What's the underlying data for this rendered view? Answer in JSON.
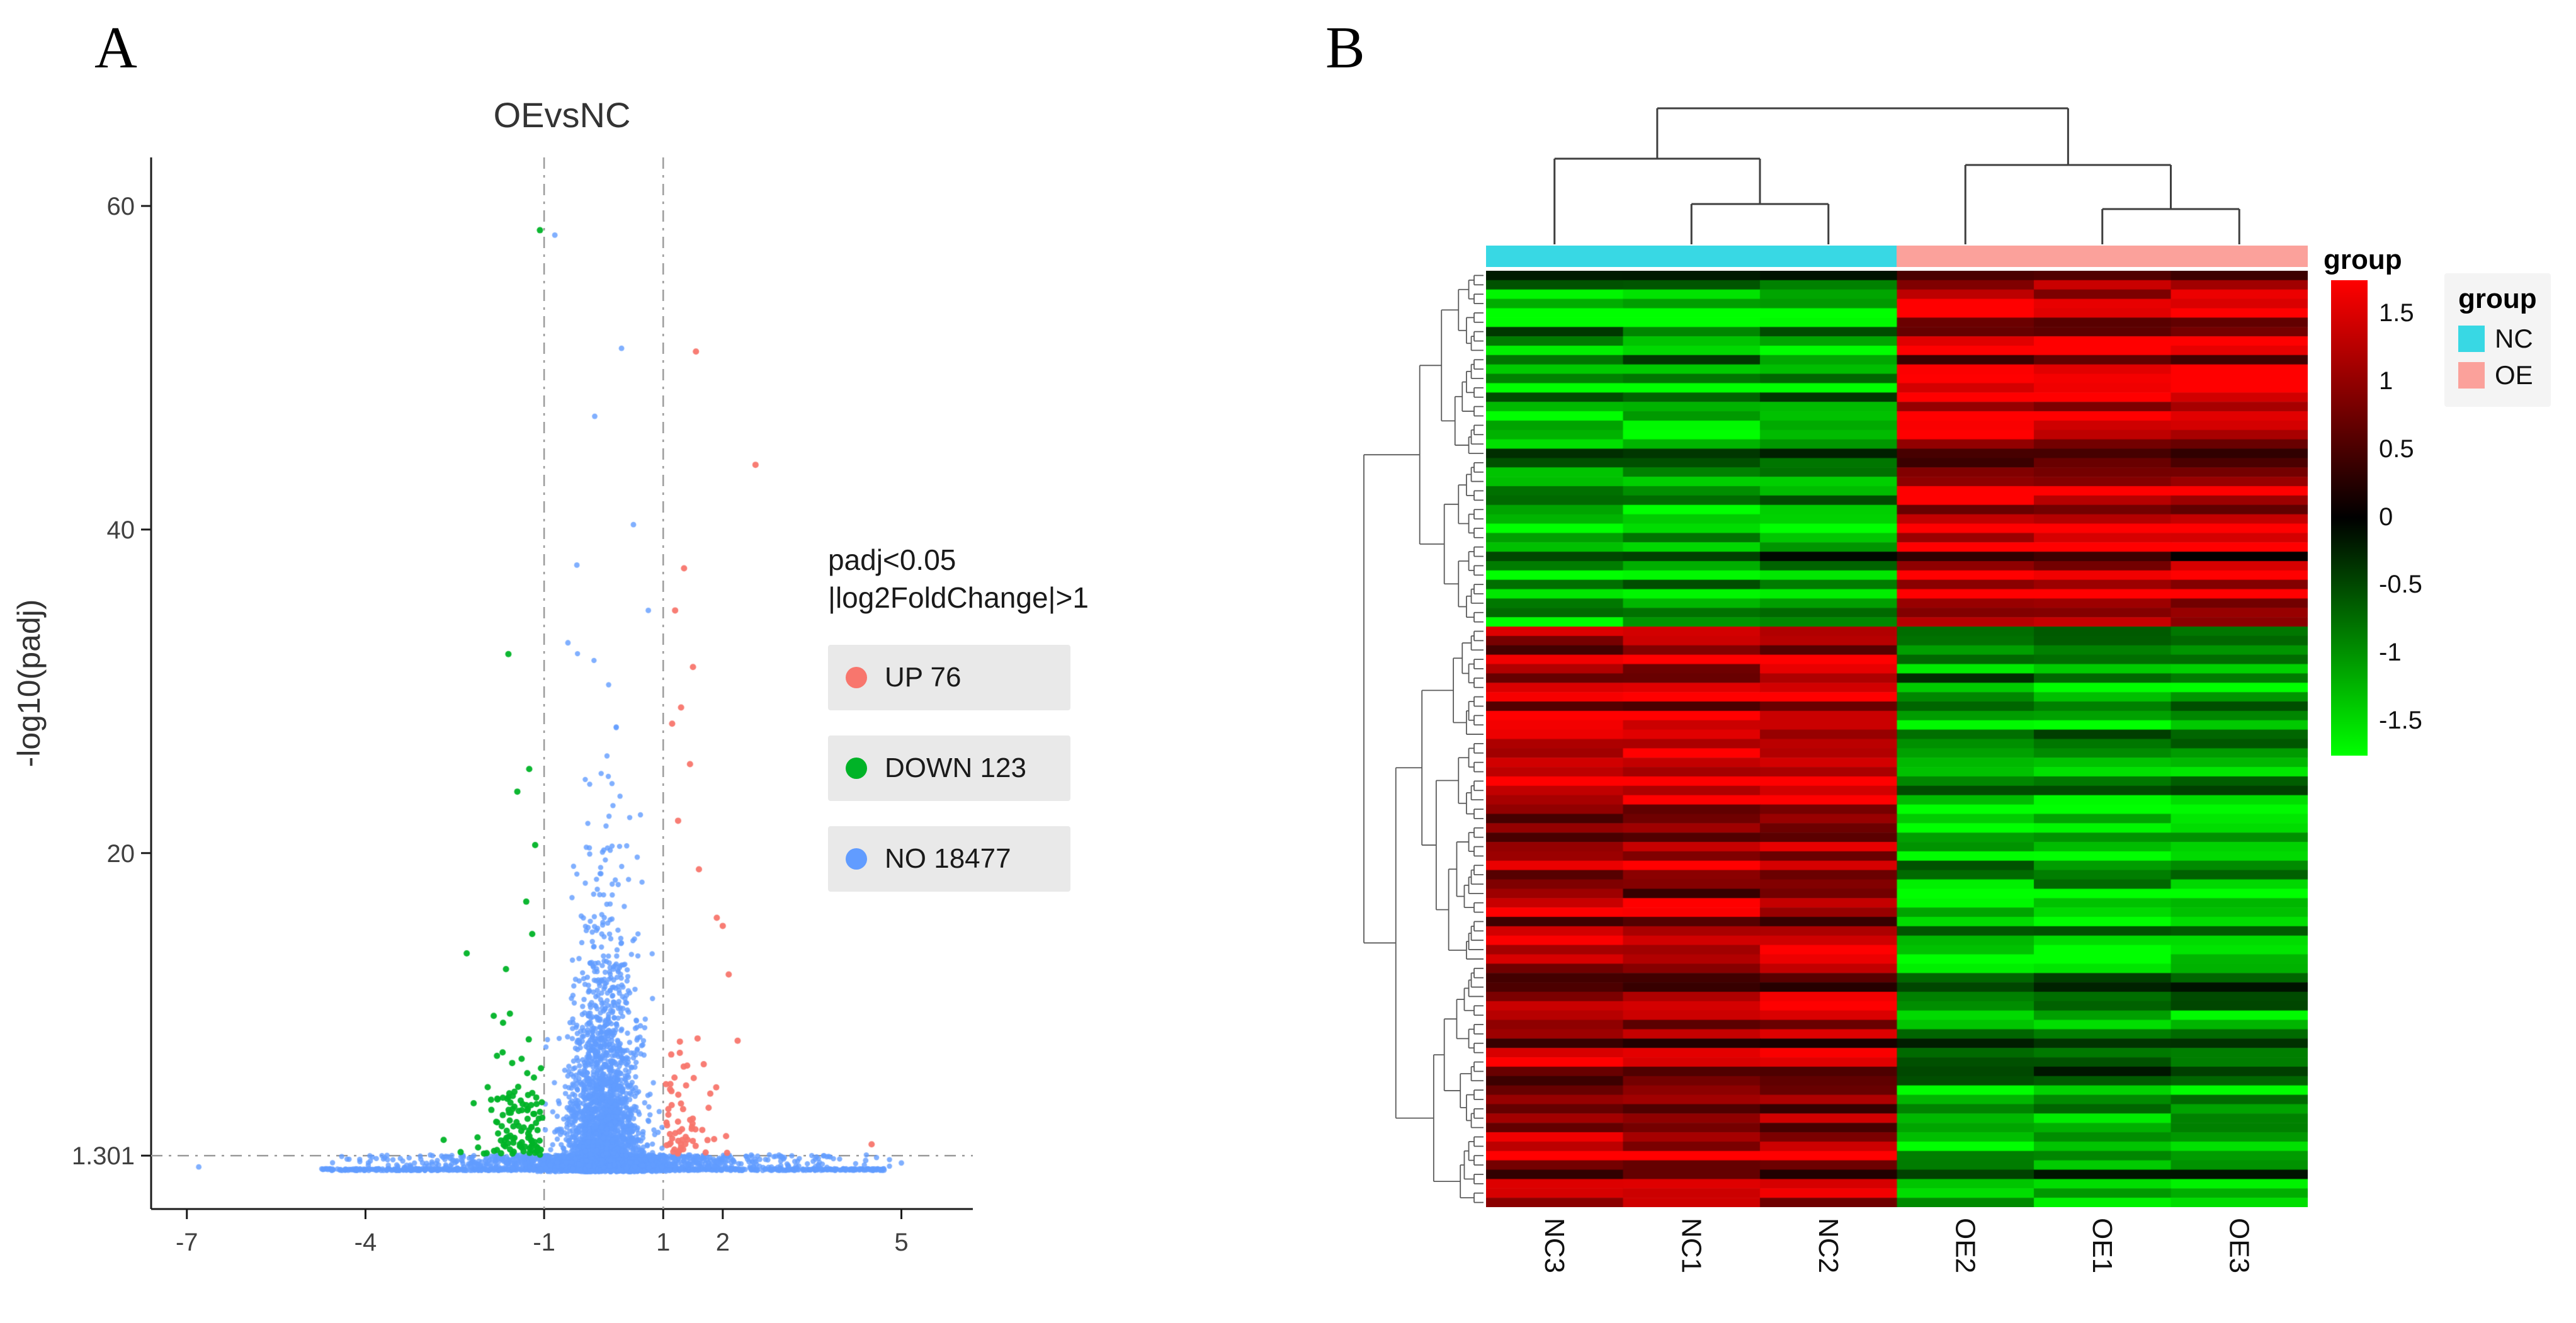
{
  "figure": {
    "background": "#ffffff"
  },
  "panel_a": {
    "label": "A",
    "title": "OEvsNC",
    "y_axis_label": "-log10(padj)",
    "legend": {
      "title_line1": "padj<0.05",
      "title_line2": "|log2FoldChange|>1",
      "items": [
        {
          "label": "UP 76"
        },
        {
          "label": "DOWN 123"
        },
        {
          "label": "NO 18477"
        }
      ]
    }
  },
  "panel_b": {
    "label": "B",
    "colorbar_title": "group",
    "group_legend": {
      "title": "group",
      "items": [
        {
          "label": "NC"
        },
        {
          "label": "OE"
        }
      ]
    }
  },
  "chart_data": [
    {
      "type": "scatter",
      "subtype": "volcano",
      "title": "OEvsNC",
      "xlabel": "",
      "ylabel": "-log10(padj)",
      "xlim": [
        -7.6,
        6.2
      ],
      "ylim": [
        -2,
        63
      ],
      "x_ticks": [
        -7,
        -4,
        -1,
        1,
        2,
        5
      ],
      "y_ticks": [
        1.301,
        20,
        40,
        60
      ],
      "thresholds": {
        "log2fc": [
          -1,
          1
        ],
        "neglog10_padj": 1.301
      },
      "grid": false,
      "legend_position": "right",
      "render_seed": 42,
      "series": [
        {
          "name": "UP",
          "count": 76,
          "color": "#F8766D"
        },
        {
          "name": "DOWN",
          "count": 123,
          "color": "#00B327"
        },
        {
          "name": "NO",
          "count": 18477,
          "color": "#619CFF"
        }
      ],
      "notable_points": {
        "no": [
          [
            -6.8,
            0.6
          ],
          [
            5.0,
            0.85
          ],
          [
            4.4,
            1.0
          ],
          [
            -0.82,
            58.2
          ],
          [
            0.3,
            51.2
          ],
          [
            -0.15,
            47.0
          ],
          [
            0.5,
            40.3
          ],
          [
            -0.45,
            37.8
          ],
          [
            0.75,
            35.0
          ],
          [
            -0.6,
            33.0
          ]
        ],
        "down": [
          [
            -1.07,
            58.5
          ],
          [
            -1.6,
            32.3
          ],
          [
            -1.25,
            25.2
          ],
          [
            -1.45,
            23.8
          ],
          [
            -1.15,
            20.5
          ],
          [
            -2.3,
            13.8
          ],
          [
            -1.3,
            17.0
          ],
          [
            -1.2,
            15.0
          ]
        ],
        "up": [
          [
            1.55,
            51.0
          ],
          [
            2.55,
            44.0
          ],
          [
            1.35,
            37.6
          ],
          [
            1.2,
            35.0
          ],
          [
            1.5,
            31.5
          ],
          [
            1.3,
            29.0
          ],
          [
            1.15,
            28.0
          ],
          [
            1.45,
            25.5
          ],
          [
            1.25,
            22.0
          ],
          [
            1.6,
            19.0
          ],
          [
            2.0,
            15.5
          ],
          [
            1.9,
            16.0
          ],
          [
            2.1,
            12.5
          ],
          [
            4.5,
            2.0
          ]
        ]
      }
    },
    {
      "type": "heatmap",
      "columns": [
        "NC3",
        "NC1",
        "NC2",
        "OE2",
        "OE1",
        "OE3"
      ],
      "column_groups": {
        "NC": [
          "NC3",
          "NC1",
          "NC2"
        ],
        "OE": [
          "OE2",
          "OE1",
          "OE3"
        ]
      },
      "group_colors": {
        "NC": "#38D8E4",
        "OE": "#FBA19B"
      },
      "n_rows": 100,
      "row_split": 38,
      "pattern": [
        {
          "rows": "1-38",
          "NC": "low (green)",
          "OE": "high (red)"
        },
        {
          "rows": "39-100",
          "NC": "high (red)",
          "OE": "low (green)"
        }
      ],
      "colorscale": {
        "stops": [
          "#FF0000",
          "#000000",
          "#00FF00"
        ],
        "domain": [
          1.75,
          0,
          -1.75
        ],
        "ticks": [
          1.5,
          1,
          0.5,
          0,
          -0.5,
          -1,
          -1.5
        ]
      },
      "dendrograms": {
        "top": true,
        "left": true
      },
      "render_seed": 7
    }
  ]
}
